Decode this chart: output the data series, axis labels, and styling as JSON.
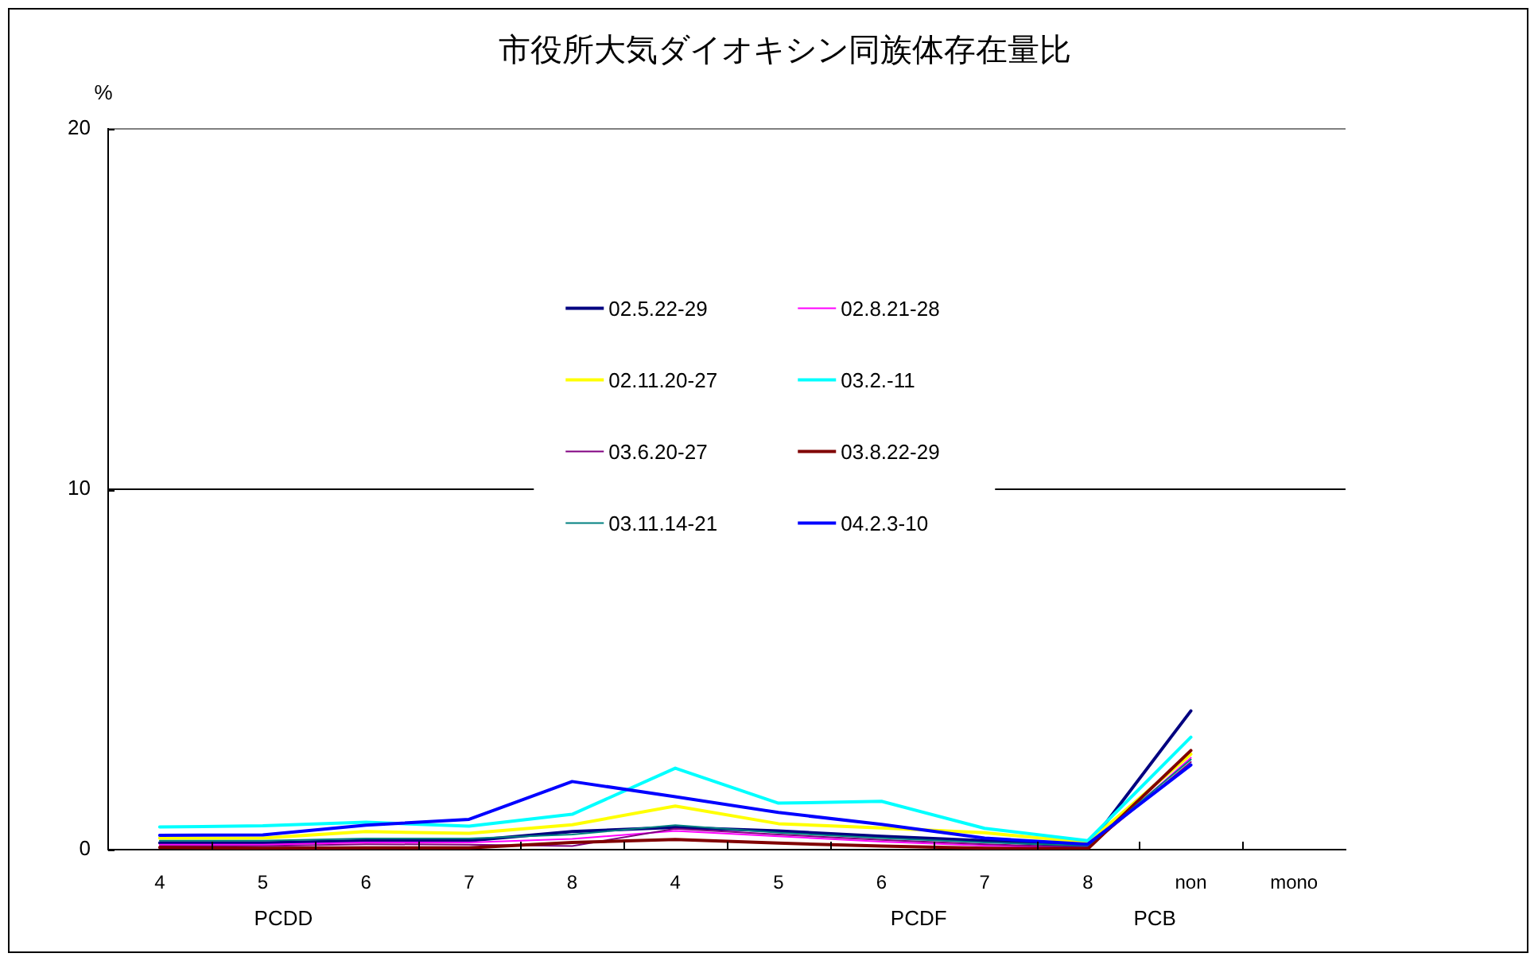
{
  "chart_data": {
    "type": "line",
    "title": "市役所大気ダイオキシン同族体存在量比",
    "ylabel": "%",
    "categories": [
      "4",
      "5",
      "6",
      "7",
      "8",
      "4",
      "5",
      "6",
      "7",
      "8",
      "non",
      "mono"
    ],
    "series": [
      {
        "name": "02.5.22-29",
        "color": "#000080",
        "values": [
          0.19,
          0.19,
          0.25,
          0.25,
          0.5,
          0.62,
          0.52,
          0.37,
          0.25,
          0.08,
          3.85,
          null
        ]
      },
      {
        "name": "02.8.21-28",
        "color": "#ff00ff",
        "values": [
          0.14,
          0.14,
          0.2,
          0.2,
          0.3,
          0.52,
          0.37,
          0.22,
          0.11,
          0.04,
          2.55,
          null
        ]
      },
      {
        "name": "02.11.20-27",
        "color": "#ffff00",
        "values": [
          0.32,
          0.32,
          0.5,
          0.45,
          0.69,
          1.21,
          0.72,
          0.6,
          0.47,
          0.2,
          2.65,
          null
        ]
      },
      {
        "name": "03.2.-11",
        "color": "#00ffff",
        "values": [
          0.63,
          0.66,
          0.76,
          0.65,
          0.98,
          2.26,
          1.29,
          1.34,
          0.59,
          0.25,
          3.12,
          null
        ]
      },
      {
        "name": "03.6.20-27",
        "color": "#800080",
        "values": [
          0.1,
          0.1,
          0.15,
          0.14,
          0.1,
          0.58,
          0.42,
          0.27,
          0.15,
          0.06,
          2.43,
          null
        ]
      },
      {
        "name": "03.8.22-29",
        "color": "#800000",
        "values": [
          0.06,
          0.04,
          0.05,
          0.05,
          0.2,
          0.28,
          0.18,
          0.1,
          0.04,
          0.02,
          2.75,
          null
        ]
      },
      {
        "name": "03.11.14-21",
        "color": "#008080",
        "values": [
          0.25,
          0.25,
          0.31,
          0.31,
          0.42,
          0.68,
          0.47,
          0.32,
          0.2,
          0.11,
          2.5,
          null
        ]
      },
      {
        "name": "04.2.3-10",
        "color": "#0000ff",
        "values": [
          0.4,
          0.41,
          0.68,
          0.84,
          1.89,
          1.47,
          1.03,
          0.7,
          0.32,
          0.15,
          2.35,
          null
        ]
      }
    ],
    "ylim": [
      0,
      20
    ],
    "yticks": [
      0,
      10,
      20
    ],
    "grid": "y",
    "legend": "center",
    "annotations": [
      "PCDD",
      "PCDF",
      "PCB"
    ]
  }
}
